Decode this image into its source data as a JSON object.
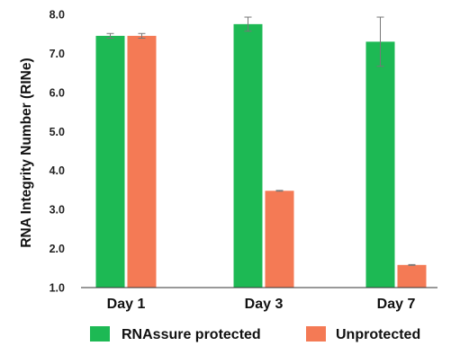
{
  "chart_data": {
    "type": "bar",
    "ylabel": "RNA Integrity Number (RINe)",
    "categories": [
      "Day 1",
      "Day 3",
      "Day 7"
    ],
    "ylim": [
      1.0,
      8.0
    ],
    "yticks": [
      "1.0",
      "2.0",
      "3.0",
      "4.0",
      "5.0",
      "6.0",
      "7.0",
      "8.0"
    ],
    "grid": false,
    "legend_position": "bottom",
    "series": [
      {
        "name": "RNAssure protected",
        "color": "#1db954",
        "values": [
          7.45,
          7.75,
          7.3
        ],
        "errors": [
          0.06,
          0.18,
          0.63
        ]
      },
      {
        "name": "Unprotected",
        "color": "#f47a55",
        "values": [
          7.45,
          3.48,
          1.58
        ],
        "errors": [
          0.06,
          0.01,
          0.01
        ]
      }
    ]
  }
}
